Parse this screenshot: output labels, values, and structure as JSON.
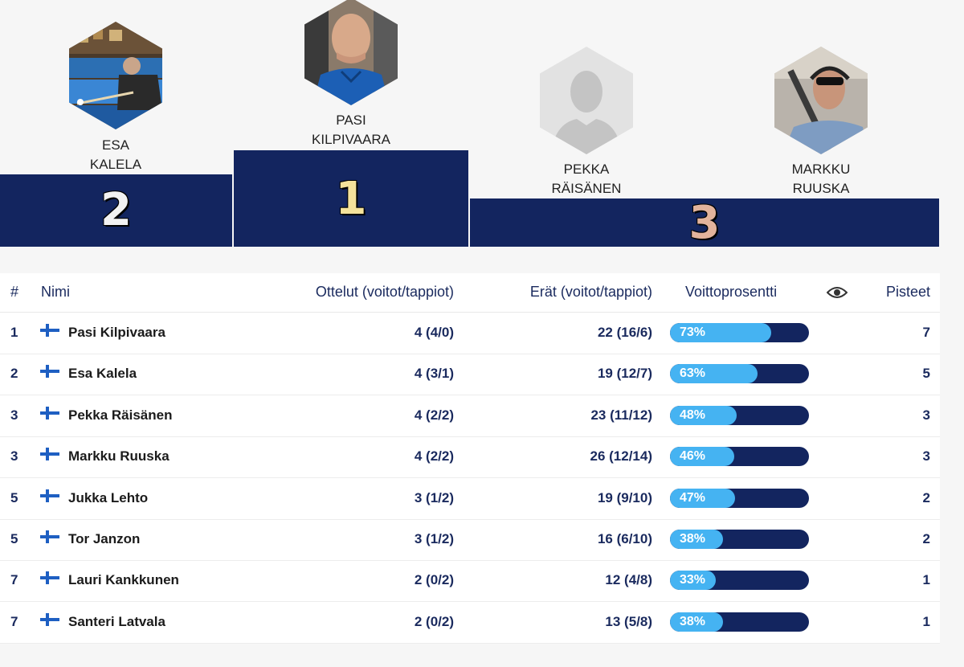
{
  "podium": {
    "first": {
      "place": "1",
      "first_name": "PASI",
      "last_name": "KILPIVAARA"
    },
    "second": {
      "place": "2",
      "first_name": "ESA",
      "last_name": "KALELA"
    },
    "third_a": {
      "first_name": "PEKKA",
      "last_name": "RÄISÄNEN"
    },
    "third_b": {
      "first_name": "MARKKU",
      "last_name": "RUUSKA"
    },
    "third_place": "3"
  },
  "table": {
    "headers": {
      "rank": "#",
      "name": "Nimi",
      "matches": "Ottelut (voitot/tappiot)",
      "frames": "Erät (voitot/tappiot)",
      "win_pct": "Voittoprosentti",
      "points": "Pisteet"
    },
    "eye_icon": "eye-icon",
    "rows": [
      {
        "rank": "1",
        "name": "Pasi Kilpivaara",
        "matches": "4 (4/0)",
        "frames": "22 (16/6)",
        "pct_label": "73%",
        "pct": 73,
        "points": "7"
      },
      {
        "rank": "2",
        "name": "Esa Kalela",
        "matches": "4 (3/1)",
        "frames": "19 (12/7)",
        "pct_label": "63%",
        "pct": 63,
        "points": "5"
      },
      {
        "rank": "3",
        "name": "Pekka Räisänen",
        "matches": "4 (2/2)",
        "frames": "23 (11/12)",
        "pct_label": "48%",
        "pct": 48,
        "points": "3"
      },
      {
        "rank": "3",
        "name": "Markku Ruuska",
        "matches": "4 (2/2)",
        "frames": "26 (12/14)",
        "pct_label": "46%",
        "pct": 46,
        "points": "3"
      },
      {
        "rank": "5",
        "name": "Jukka Lehto",
        "matches": "3 (1/2)",
        "frames": "19 (9/10)",
        "pct_label": "47%",
        "pct": 47,
        "points": "2"
      },
      {
        "rank": "5",
        "name": "Tor Janzon",
        "matches": "3 (1/2)",
        "frames": "16 (6/10)",
        "pct_label": "38%",
        "pct": 38,
        "points": "2"
      },
      {
        "rank": "7",
        "name": "Lauri Kankkunen",
        "matches": "2 (0/2)",
        "frames": "12 (4/8)",
        "pct_label": "33%",
        "pct": 33,
        "points": "1"
      },
      {
        "rank": "7",
        "name": "Santeri Latvala",
        "matches": "2 (0/2)",
        "frames": "13 (5/8)",
        "pct_label": "38%",
        "pct": 38,
        "points": "1"
      }
    ]
  },
  "colors": {
    "podium_blue": "#13255f",
    "bar_fill": "#45b3f2",
    "text_navy": "#1a2a5e"
  }
}
